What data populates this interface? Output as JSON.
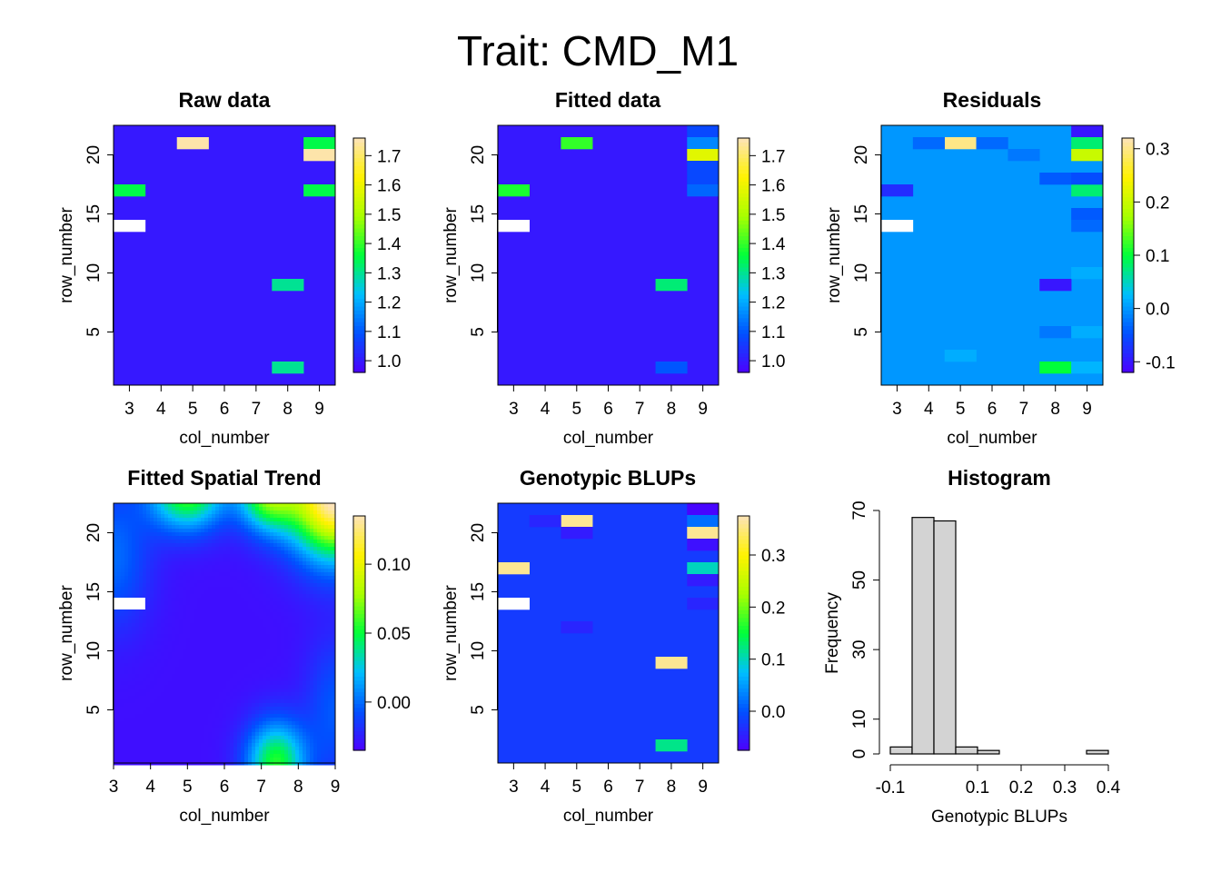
{
  "title": "Trait: CMD_M1",
  "colors": {
    "palette": [
      "#4d00ff",
      "#0050ff",
      "#00bfff",
      "#00ff3a",
      "#a8ff00",
      "#fff200",
      "#fde3b8"
    ],
    "missing": "#ffffff",
    "hist_fill": "#d3d3d3"
  },
  "chart_data": [
    {
      "id": "raw",
      "type": "heatmap",
      "title": "Raw data",
      "xlabel": "col_number",
      "ylabel": "row_number",
      "x_categories": [
        "3",
        "4",
        "5",
        "6",
        "7",
        "8",
        "9"
      ],
      "y_range": [
        0.5,
        22.5
      ],
      "y_ticks": [
        "5",
        "10",
        "15",
        "20"
      ],
      "colorbar": {
        "min": 0.96,
        "max": 1.76,
        "ticks": [
          "1.0",
          "1.1",
          "1.2",
          "1.3",
          "1.4",
          "1.5",
          "1.6",
          "1.7"
        ]
      },
      "background_value": 1.0,
      "cells": [
        {
          "col": "5",
          "row": 21,
          "value": 1.75
        },
        {
          "col": "9",
          "row": 21,
          "value": 1.35
        },
        {
          "col": "9",
          "row": 20,
          "value": 1.75
        },
        {
          "col": "3",
          "row": 17,
          "value": 1.35
        },
        {
          "col": "9",
          "row": 17,
          "value": 1.35
        },
        {
          "col": "3",
          "row": 14,
          "value": null
        },
        {
          "col": "8",
          "row": 9,
          "value": 1.3
        },
        {
          "col": "8",
          "row": 2,
          "value": 1.3
        }
      ]
    },
    {
      "id": "fitted",
      "type": "heatmap",
      "title": "Fitted data",
      "xlabel": "col_number",
      "ylabel": "row_number",
      "x_categories": [
        "3",
        "4",
        "5",
        "6",
        "7",
        "8",
        "9"
      ],
      "y_range": [
        0.5,
        22.5
      ],
      "y_ticks": [
        "5",
        "10",
        "15",
        "20"
      ],
      "colorbar": {
        "min": 0.96,
        "max": 1.76,
        "ticks": [
          "1.0",
          "1.1",
          "1.2",
          "1.3",
          "1.4",
          "1.5",
          "1.6",
          "1.7"
        ]
      },
      "background_value": 1.0,
      "cells": [
        {
          "col": "9",
          "row": 22,
          "value": 1.08
        },
        {
          "col": "9",
          "row": 21,
          "value": 1.16
        },
        {
          "col": "5",
          "row": 21,
          "value": 1.4
        },
        {
          "col": "9",
          "row": 20,
          "value": 1.58
        },
        {
          "col": "9",
          "row": 19,
          "value": 1.08
        },
        {
          "col": "9",
          "row": 18,
          "value": 1.08
        },
        {
          "col": "3",
          "row": 17,
          "value": 1.38
        },
        {
          "col": "9",
          "row": 17,
          "value": 1.12
        },
        {
          "col": "3",
          "row": 14,
          "value": null
        },
        {
          "col": "8",
          "row": 9,
          "value": 1.32
        },
        {
          "col": "8",
          "row": 2,
          "value": 1.1
        }
      ]
    },
    {
      "id": "residuals",
      "type": "heatmap",
      "title": "Residuals",
      "xlabel": "col_number",
      "ylabel": "row_number",
      "x_categories": [
        "3",
        "4",
        "5",
        "6",
        "7",
        "8",
        "9"
      ],
      "y_range": [
        0.5,
        22.5
      ],
      "y_ticks": [
        "5",
        "10",
        "15",
        "20"
      ],
      "colorbar": {
        "min": -0.12,
        "max": 0.32,
        "ticks": [
          "-0.1",
          "0.0",
          "0.1",
          "0.2",
          "0.3"
        ]
      },
      "background_value": 0.0,
      "cells": [
        {
          "col": "9",
          "row": 22,
          "value": -0.1
        },
        {
          "col": "5",
          "row": 21,
          "value": 0.3
        },
        {
          "col": "9",
          "row": 21,
          "value": 0.08
        },
        {
          "col": "9",
          "row": 20,
          "value": 0.2
        },
        {
          "col": "3",
          "row": 17,
          "value": -0.08
        },
        {
          "col": "9",
          "row": 17,
          "value": 0.08
        },
        {
          "col": "3",
          "row": 14,
          "value": null
        },
        {
          "col": "8",
          "row": 9,
          "value": -0.1
        },
        {
          "col": "8",
          "row": 2,
          "value": 0.1
        },
        {
          "col": "9",
          "row": 2,
          "value": 0.02
        },
        {
          "col": "4",
          "row": 21,
          "value": -0.03
        },
        {
          "col": "6",
          "row": 21,
          "value": -0.03
        },
        {
          "col": "7",
          "row": 20,
          "value": -0.02
        },
        {
          "col": "8",
          "row": 18,
          "value": -0.04
        },
        {
          "col": "9",
          "row": 18,
          "value": -0.05
        },
        {
          "col": "9",
          "row": 15,
          "value": -0.04
        },
        {
          "col": "9",
          "row": 14,
          "value": -0.03
        },
        {
          "col": "5",
          "row": 3,
          "value": 0.015
        },
        {
          "col": "8",
          "row": 5,
          "value": -0.02
        },
        {
          "col": "9",
          "row": 5,
          "value": 0.015
        },
        {
          "col": "9",
          "row": 10,
          "value": 0.015
        }
      ]
    },
    {
      "id": "spatial",
      "type": "heatmap",
      "title": "Fitted Spatial Trend",
      "xlabel": "col_number",
      "ylabel": "row_number",
      "x_range": [
        3,
        9
      ],
      "x_ticks": [
        "3",
        "4",
        "5",
        "6",
        "7",
        "8",
        "9"
      ],
      "y_range": [
        0.5,
        22.5
      ],
      "y_ticks": [
        "5",
        "10",
        "15",
        "20"
      ],
      "colorbar": {
        "min": -0.035,
        "max": 0.135,
        "ticks": [
          "0.00",
          "0.05",
          "0.10"
        ]
      },
      "surface": "smooth",
      "missing_cells": [
        {
          "col": 3.4,
          "row": 14
        }
      ]
    },
    {
      "id": "blups",
      "type": "heatmap",
      "title": "Genotypic BLUPs",
      "xlabel": "col_number",
      "ylabel": "row_number",
      "x_categories": [
        "3",
        "4",
        "5",
        "6",
        "7",
        "8",
        "9"
      ],
      "y_range": [
        0.5,
        22.5
      ],
      "y_ticks": [
        "5",
        "10",
        "15",
        "20"
      ],
      "colorbar": {
        "min": -0.075,
        "max": 0.375,
        "ticks": [
          "0.0",
          "0.1",
          "0.2",
          "0.3"
        ]
      },
      "background_value": -0.02,
      "cells": [
        {
          "col": "9",
          "row": 22,
          "value": -0.07
        },
        {
          "col": "5",
          "row": 21,
          "value": 0.36
        },
        {
          "col": "9",
          "row": 21,
          "value": 0.02
        },
        {
          "col": "9",
          "row": 20,
          "value": 0.36
        },
        {
          "col": "9",
          "row": 19,
          "value": -0.06
        },
        {
          "col": "3",
          "row": 17,
          "value": 0.36
        },
        {
          "col": "9",
          "row": 17,
          "value": 0.1
        },
        {
          "col": "3",
          "row": 14,
          "value": null
        },
        {
          "col": "8",
          "row": 9,
          "value": 0.36
        },
        {
          "col": "8",
          "row": 2,
          "value": 0.12
        },
        {
          "col": "5",
          "row": 20,
          "value": -0.05
        },
        {
          "col": "4",
          "row": 21,
          "value": -0.04
        },
        {
          "col": "9",
          "row": 16,
          "value": -0.05
        },
        {
          "col": "5",
          "row": 12,
          "value": -0.04
        },
        {
          "col": "9",
          "row": 14,
          "value": -0.04
        }
      ]
    },
    {
      "id": "histogram",
      "type": "bar",
      "title": "Histogram",
      "xlabel": "Genotypic BLUPs",
      "ylabel": "Frequency",
      "bin_edges": [
        -0.1,
        -0.05,
        0.0,
        0.05,
        0.1,
        0.15,
        0.2,
        0.25,
        0.3,
        0.35,
        0.4
      ],
      "values": [
        2,
        68,
        67,
        2,
        1,
        0,
        0,
        0,
        0,
        1
      ],
      "x_ticks": [
        "-0.1",
        "0.1",
        "0.2",
        "0.3",
        "0.4"
      ],
      "y_ticks": [
        "0",
        "10",
        "30",
        "50",
        "70"
      ],
      "ylim": [
        0,
        70
      ]
    }
  ]
}
